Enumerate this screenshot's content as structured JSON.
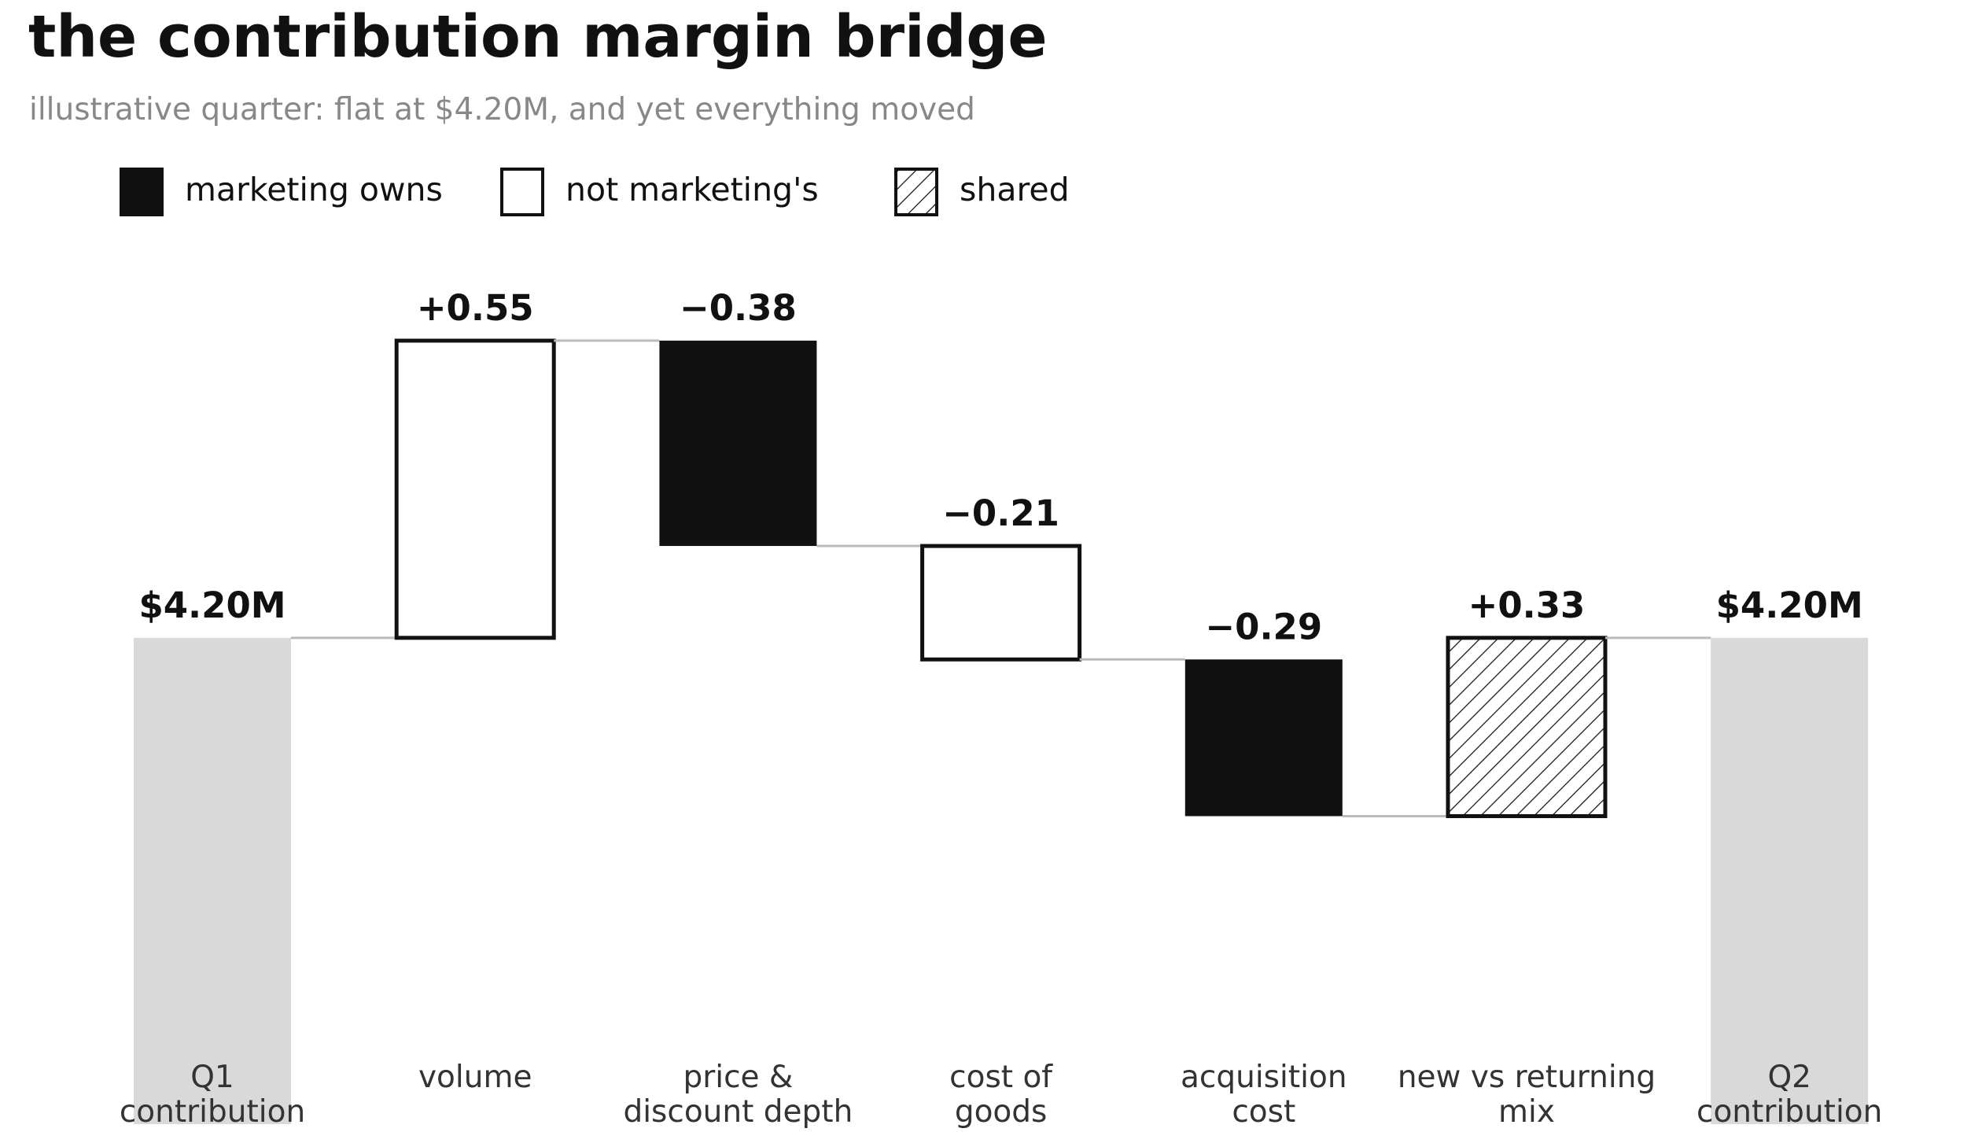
{
  "chart_data": {
    "type": "waterfall",
    "title": "the contribution margin bridge",
    "subtitle": "illustrative quarter: flat at $4.20M, and yet everything moved",
    "categories": [
      "Q1\ncontribution",
      "volume",
      "price &\ndiscount depth",
      "cost of\ngoods",
      "acquisition\ncost",
      "new vs returning\nmix",
      "Q2\ncontribution"
    ],
    "values": [
      4.2,
      0.55,
      -0.38,
      -0.21,
      -0.29,
      0.33,
      4.2
    ],
    "value_labels": [
      "$4.20M",
      "+0.55",
      "−0.38",
      "−0.21",
      "−0.29",
      "+0.33",
      "$4.20M"
    ],
    "measure": [
      "total",
      "relative",
      "relative",
      "relative",
      "relative",
      "relative",
      "total"
    ],
    "owner": [
      null,
      1,
      0,
      1,
      0,
      2,
      null
    ],
    "legend": [
      {
        "name": "marketing owns",
        "fill": "#111111"
      },
      {
        "name": "not marketing's",
        "fill": "#ffffff"
      },
      {
        "name": "shared",
        "fill": "hatch"
      }
    ],
    "total_color": "#d9d9d9",
    "connector_color": "#bbbbbb",
    "ylim": [
      3.3,
      4.9
    ]
  }
}
